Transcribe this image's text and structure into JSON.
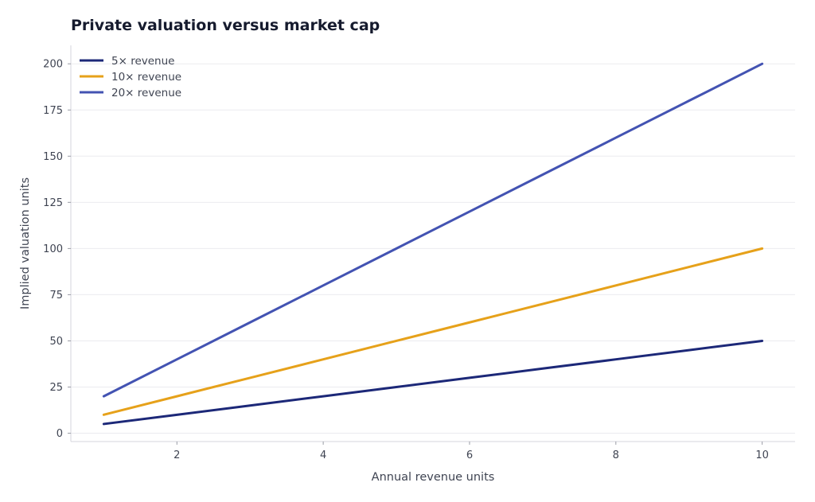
{
  "chart_data": {
    "type": "line",
    "title": "Private valuation versus market cap",
    "xlabel": "Annual revenue units",
    "ylabel": "Implied valuation units",
    "xlim": [
      0.55,
      10.45
    ],
    "ylim": [
      -4.5,
      210
    ],
    "xticks": [
      2,
      4,
      6,
      8,
      10
    ],
    "yticks": [
      0,
      25,
      50,
      75,
      100,
      125,
      150,
      175,
      200
    ],
    "grid": "horizontal",
    "legend_position": "top-left",
    "x": [
      1,
      2,
      3,
      4,
      5,
      6,
      7,
      8,
      9,
      10
    ],
    "series": [
      {
        "name": "5× revenue",
        "color": "#1c2878",
        "values": [
          5,
          10,
          15,
          20,
          25,
          30,
          35,
          40,
          45,
          50
        ]
      },
      {
        "name": "10× revenue",
        "color": "#e6a11a",
        "values": [
          10,
          20,
          30,
          40,
          50,
          60,
          70,
          80,
          90,
          100
        ]
      },
      {
        "name": "20× revenue",
        "color": "#4353b2",
        "values": [
          20,
          40,
          60,
          80,
          100,
          120,
          140,
          160,
          180,
          200
        ]
      }
    ]
  }
}
